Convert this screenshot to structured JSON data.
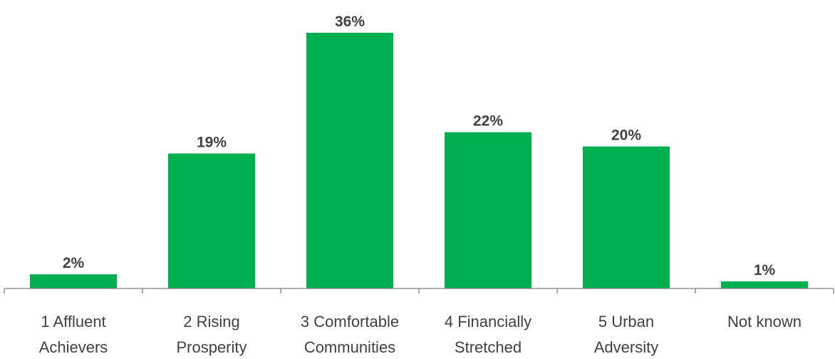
{
  "chart_data": {
    "type": "bar",
    "categories": [
      [
        "1  Affluent",
        "Achievers"
      ],
      [
        "2  Rising",
        "Prosperity"
      ],
      [
        "3  Comfortable",
        "Communities"
      ],
      [
        "4  Financially",
        "Stretched"
      ],
      [
        "5  Urban",
        "Adversity"
      ],
      [
        "Not known"
      ]
    ],
    "values": [
      2,
      19,
      36,
      22,
      20,
      1
    ],
    "value_labels": [
      "2%",
      "19%",
      "36%",
      "22%",
      "20%",
      "1%"
    ],
    "title": "",
    "xlabel": "",
    "ylabel": "",
    "ylim": [
      0,
      36
    ],
    "grid": false,
    "legend": "none",
    "colors": {
      "bar": "#00B050",
      "axis": "#7F7F7F",
      "text": "#404040"
    }
  }
}
